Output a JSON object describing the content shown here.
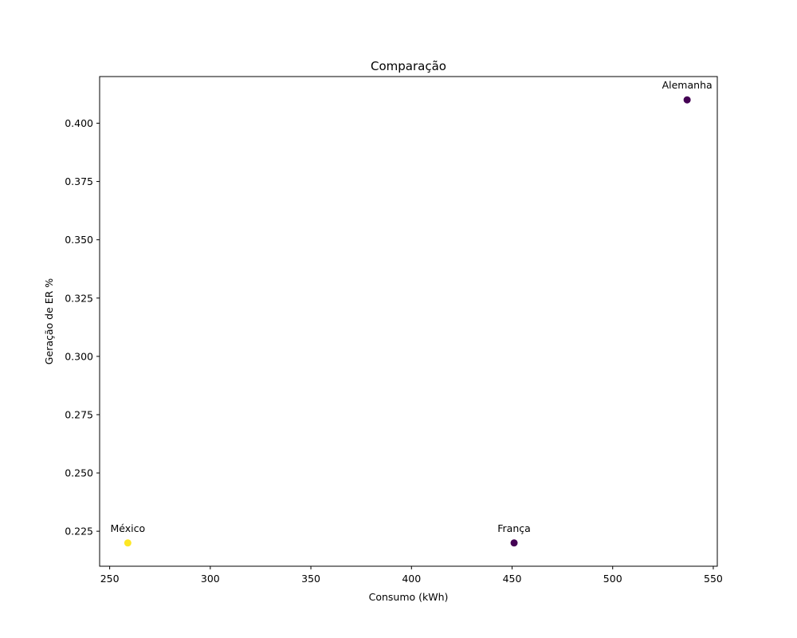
{
  "chart_data": {
    "type": "scatter",
    "title": "Comparação",
    "xlabel": "Consumo (kWh)",
    "ylabel": "Geração de ER %",
    "xlim": [
      245,
      552
    ],
    "ylim": [
      0.21,
      0.42
    ],
    "xticks": [
      250,
      300,
      350,
      400,
      450,
      500,
      550
    ],
    "yticks": [
      0.225,
      0.25,
      0.275,
      0.3,
      0.325,
      0.35,
      0.375,
      0.4
    ],
    "ytick_labels": [
      "0.225",
      "0.250",
      "0.275",
      "0.300",
      "0.325",
      "0.350",
      "0.375",
      "0.400"
    ],
    "grid": false,
    "legend": "none",
    "points": [
      {
        "label": "México",
        "x": 259,
        "y": 0.22,
        "color": "#fde725"
      },
      {
        "label": "França",
        "x": 451,
        "y": 0.22,
        "color": "#440154"
      },
      {
        "label": "Alemanha",
        "x": 537,
        "y": 0.41,
        "color": "#440154"
      }
    ]
  }
}
